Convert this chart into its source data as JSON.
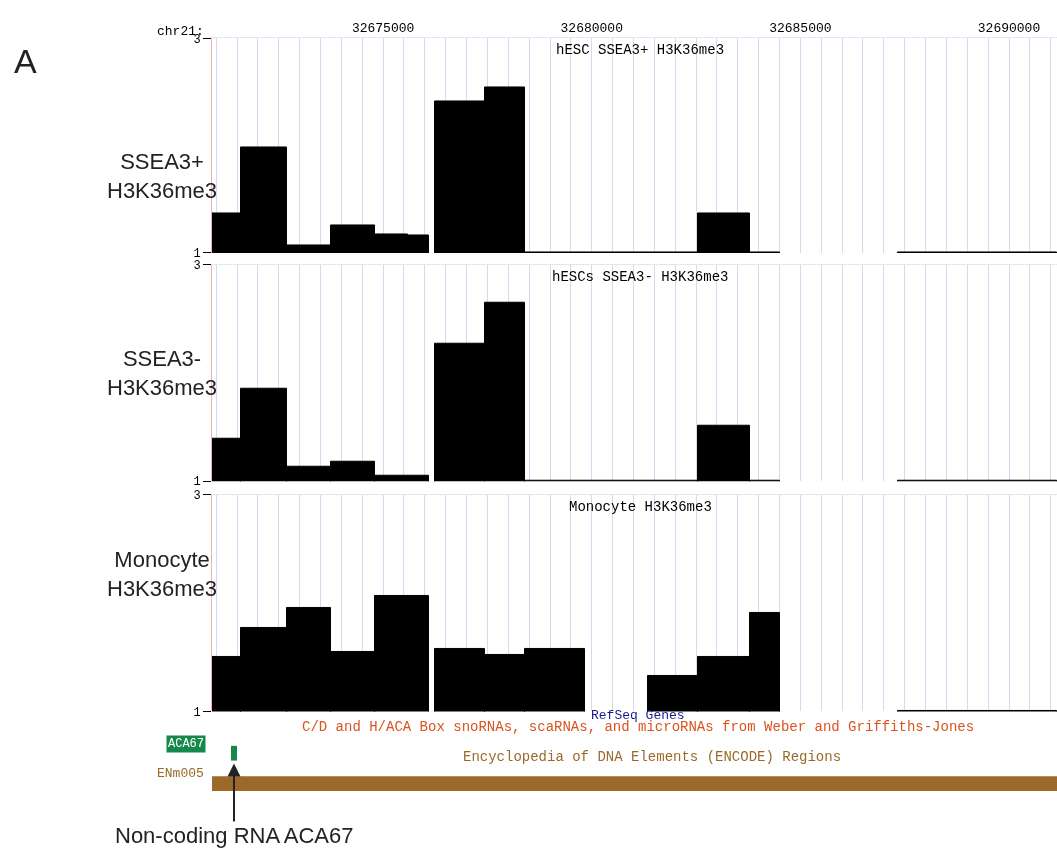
{
  "chart_data": [
    {
      "type": "histogram",
      "title": "hESC SSEA3+ H3K36me3",
      "ylabel": "SSEA3+\nH3K36me3",
      "xlabel": "chr21:",
      "annotations": [
        "A"
      ],
      "color": "#000000",
      "bins": [
        32670900,
        32671600,
        32672700,
        32673750,
        32674800,
        32675600,
        32676100,
        32676250,
        32677450,
        32678400,
        32682550,
        32683800,
        32684500,
        32687350,
        32691150
      ],
      "values": [
        1.37,
        1.98,
        1.07,
        1.26,
        1.17,
        1.16,
        null,
        2.41,
        2.54,
        1,
        1.37,
        1,
        null,
        1
      ],
      "xlim": [
        32670900,
        32691150
      ],
      "xticks": [
        {
          "value": 32671000,
          "label": null
        },
        {
          "value": 32671500,
          "label": null
        },
        {
          "value": 32672000,
          "label": null
        },
        {
          "value": 32672500,
          "label": null
        },
        {
          "value": 32673000,
          "label": null
        },
        {
          "value": 32673500,
          "label": null
        },
        {
          "value": 32674000,
          "label": null
        },
        {
          "value": 32674500,
          "label": null
        },
        32675000,
        {
          "value": 32675500,
          "label": null
        },
        {
          "value": 32676000,
          "label": null
        },
        {
          "value": 32676500,
          "label": null
        },
        {
          "value": 32677000,
          "label": null
        },
        {
          "value": 32677500,
          "label": null
        },
        {
          "value": 32678000,
          "label": null
        },
        {
          "value": 32678500,
          "label": null
        },
        {
          "value": 32679000,
          "label": null
        },
        {
          "value": 32679500,
          "label": null
        },
        32680000,
        {
          "value": 32680500,
          "label": null
        },
        {
          "value": 32681000,
          "label": null
        },
        {
          "value": 32681500,
          "label": null
        },
        {
          "value": 32682000,
          "label": null
        },
        {
          "value": 32682500,
          "label": null
        },
        {
          "value": 32683000,
          "label": null
        },
        {
          "value": 32683500,
          "label": null
        },
        {
          "value": 32684000,
          "label": null
        },
        {
          "value": 32684500,
          "label": null
        },
        32685000,
        {
          "value": 32685500,
          "label": null
        },
        {
          "value": 32686000,
          "label": null
        },
        {
          "value": 32686500,
          "label": null
        },
        {
          "value": 32687000,
          "label": null
        },
        {
          "value": 32687500,
          "label": null
        },
        {
          "value": 32688000,
          "label": null
        },
        {
          "value": 32688500,
          "label": null
        },
        {
          "value": 32689000,
          "label": null
        },
        {
          "value": 32689500,
          "label": null
        },
        32690000,
        {
          "value": 32690500,
          "label": null
        },
        {
          "value": 32691000,
          "label": null
        }
      ],
      "ylim": [
        1,
        3
      ],
      "yticks": [
        1,
        3
      ],
      "grid": "x"
    },
    {
      "type": "histogram",
      "title": "hESCs SSEA3- H3K36me3",
      "ylabel": "SSEA3-\nH3K36me3",
      "color": "#000000",
      "bins": [
        32670900,
        32671600,
        32672700,
        32673750,
        32674800,
        32676100,
        32676250,
        32677450,
        32678400,
        32682550,
        32683800,
        32684500,
        32687350,
        32691150
      ],
      "values": [
        1.39,
        1.85,
        1.13,
        1.18,
        1.05,
        null,
        2.27,
        2.65,
        1,
        1.51,
        1,
        null,
        1
      ],
      "xlim": [
        32670900,
        32691150
      ],
      "xticks": [
        {
          "value": 32671000,
          "label": null
        },
        {
          "value": 32671500,
          "label": null
        },
        {
          "value": 32672000,
          "label": null
        },
        {
          "value": 32672500,
          "label": null
        },
        {
          "value": 32673000,
          "label": null
        },
        {
          "value": 32673500,
          "label": null
        },
        {
          "value": 32674000,
          "label": null
        },
        {
          "value": 32674500,
          "label": null
        },
        32675000,
        {
          "value": 32675500,
          "label": null
        },
        {
          "value": 32676000,
          "label": null
        },
        {
          "value": 32676500,
          "label": null
        },
        {
          "value": 32677000,
          "label": null
        },
        {
          "value": 32677500,
          "label": null
        },
        {
          "value": 32678000,
          "label": null
        },
        {
          "value": 32678500,
          "label": null
        },
        {
          "value": 32679000,
          "label": null
        },
        {
          "value": 32679500,
          "label": null
        },
        32680000,
        {
          "value": 32680500,
          "label": null
        },
        {
          "value": 32681000,
          "label": null
        },
        {
          "value": 32681500,
          "label": null
        },
        {
          "value": 32682000,
          "label": null
        },
        {
          "value": 32682500,
          "label": null
        },
        {
          "value": 32683000,
          "label": null
        },
        {
          "value": 32683500,
          "label": null
        },
        {
          "value": 32684000,
          "label": null
        },
        {
          "value": 32684500,
          "label": null
        },
        32685000,
        {
          "value": 32685500,
          "label": null
        },
        {
          "value": 32686000,
          "label": null
        },
        {
          "value": 32686500,
          "label": null
        },
        {
          "value": 32687000,
          "label": null
        },
        {
          "value": 32687500,
          "label": null
        },
        {
          "value": 32688000,
          "label": null
        },
        {
          "value": 32688500,
          "label": null
        },
        {
          "value": 32689000,
          "label": null
        },
        {
          "value": 32689500,
          "label": null
        },
        32690000,
        {
          "value": 32690500,
          "label": null
        },
        {
          "value": 32691000,
          "label": null
        }
      ],
      "ylim": [
        1,
        3
      ],
      "yticks": [
        1,
        3
      ],
      "grid": "x",
      "tick_labels": "y"
    },
    {
      "type": "histogram",
      "title": "Monocyte H3K36me3",
      "ylabel": "Monocyte\nH3K36me3",
      "color": "#000000",
      "bins": [
        32670900,
        32671600,
        32672700,
        32673750,
        32674800,
        32676100,
        32676250,
        32677450,
        32678400,
        32679850,
        32681350,
        32682550,
        32683800,
        32684500,
        32687350,
        32691150
      ],
      "values": [
        1.5,
        1.77,
        1.96,
        1.55,
        2.07,
        null,
        1.58,
        1.52,
        1.58,
        null,
        1.33,
        1.5,
        1.91,
        null,
        1
      ],
      "xlim": [
        32670900,
        32691150
      ],
      "xticks": [
        {
          "value": 32671000,
          "label": null
        },
        {
          "value": 32671500,
          "label": null
        },
        {
          "value": 32672000,
          "label": null
        },
        {
          "value": 32672500,
          "label": null
        },
        {
          "value": 32673000,
          "label": null
        },
        {
          "value": 32673500,
          "label": null
        },
        {
          "value": 32674000,
          "label": null
        },
        {
          "value": 32674500,
          "label": null
        },
        32675000,
        {
          "value": 32675500,
          "label": null
        },
        {
          "value": 32676000,
          "label": null
        },
        {
          "value": 32676500,
          "label": null
        },
        {
          "value": 32677000,
          "label": null
        },
        {
          "value": 32677500,
          "label": null
        },
        {
          "value": 32678000,
          "label": null
        },
        {
          "value": 32678500,
          "label": null
        },
        {
          "value": 32679000,
          "label": null
        },
        {
          "value": 32679500,
          "label": null
        },
        32680000,
        {
          "value": 32680500,
          "label": null
        },
        {
          "value": 32681000,
          "label": null
        },
        {
          "value": 32681500,
          "label": null
        },
        {
          "value": 32682000,
          "label": null
        },
        {
          "value": 32682500,
          "label": null
        },
        {
          "value": 32683000,
          "label": null
        },
        {
          "value": 32683500,
          "label": null
        },
        {
          "value": 32684000,
          "label": null
        },
        {
          "value": 32684500,
          "label": null
        },
        32685000,
        {
          "value": 32685500,
          "label": null
        },
        {
          "value": 32686000,
          "label": null
        },
        {
          "value": 32686500,
          "label": null
        },
        {
          "value": 32687000,
          "label": null
        },
        {
          "value": 32687500,
          "label": null
        },
        {
          "value": 32688000,
          "label": null
        },
        {
          "value": 32688500,
          "label": null
        },
        {
          "value": 32689000,
          "label": null
        },
        {
          "value": 32689500,
          "label": null
        },
        32690000,
        {
          "value": 32690500,
          "label": null
        },
        {
          "value": 32691000,
          "label": null
        }
      ],
      "ylim": [
        1,
        3
      ],
      "yticks": [
        1,
        3
      ],
      "grid": "x",
      "tick_labels": "y"
    },
    {
      "type": "other",
      "annotations": [
        "RefSeq Genes",
        "C/D and H/ACA Box snoRNAs, scaRNAs, and microRNAs from Weber and Griffiths-Jones",
        "ACA67",
        "Encyclopedia of DNA Elements (ENCODE) Regions",
        "ENm005",
        "Non-coding RNA ACA67"
      ]
    }
  ]
}
